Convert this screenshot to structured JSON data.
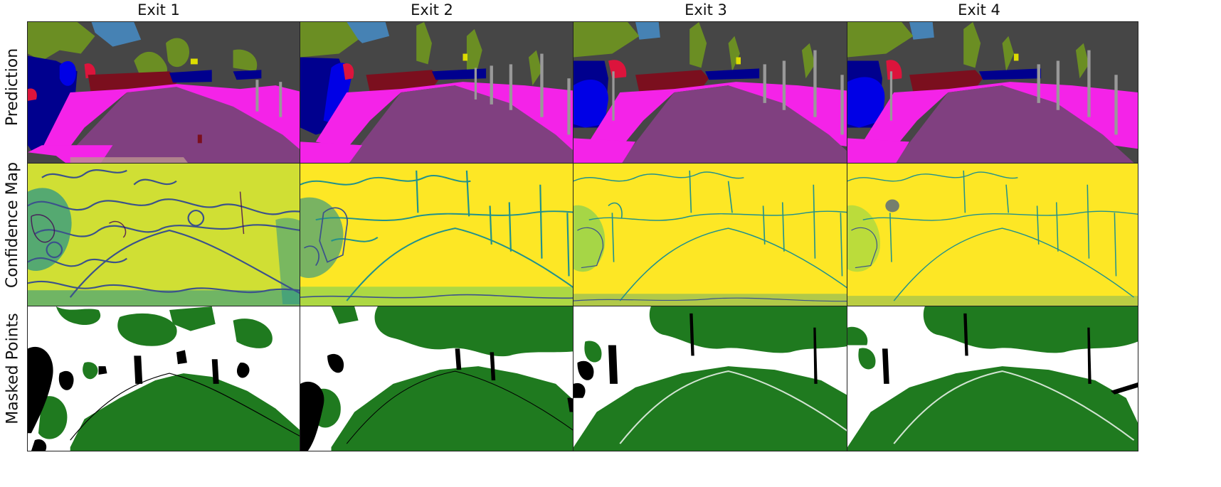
{
  "columns": [
    "Exit 1",
    "Exit 2",
    "Exit 3",
    "Exit 4"
  ],
  "rows": [
    "Prediction",
    "Confidence Map",
    "Masked Points"
  ],
  "colors": {
    "sky": "#4682B4",
    "vegetation": "#6B8E23",
    "building": "#464646",
    "road": "#804080",
    "sidewalk": "#F423E8",
    "person": "#0000E6",
    "rider": "#DC143C",
    "car": "#00008E",
    "bicycle": "#7B0F1E",
    "pole": "#999999",
    "traffic_sign": "#DCDC00",
    "terrain": "#BC9490",
    "confidence_high": "#FDE725",
    "confidence_mid": "#21918C",
    "confidence_low": "#440154",
    "masked": "#1F7A1F",
    "unmasked": "#FFFFFF",
    "invalid": "#000000"
  }
}
